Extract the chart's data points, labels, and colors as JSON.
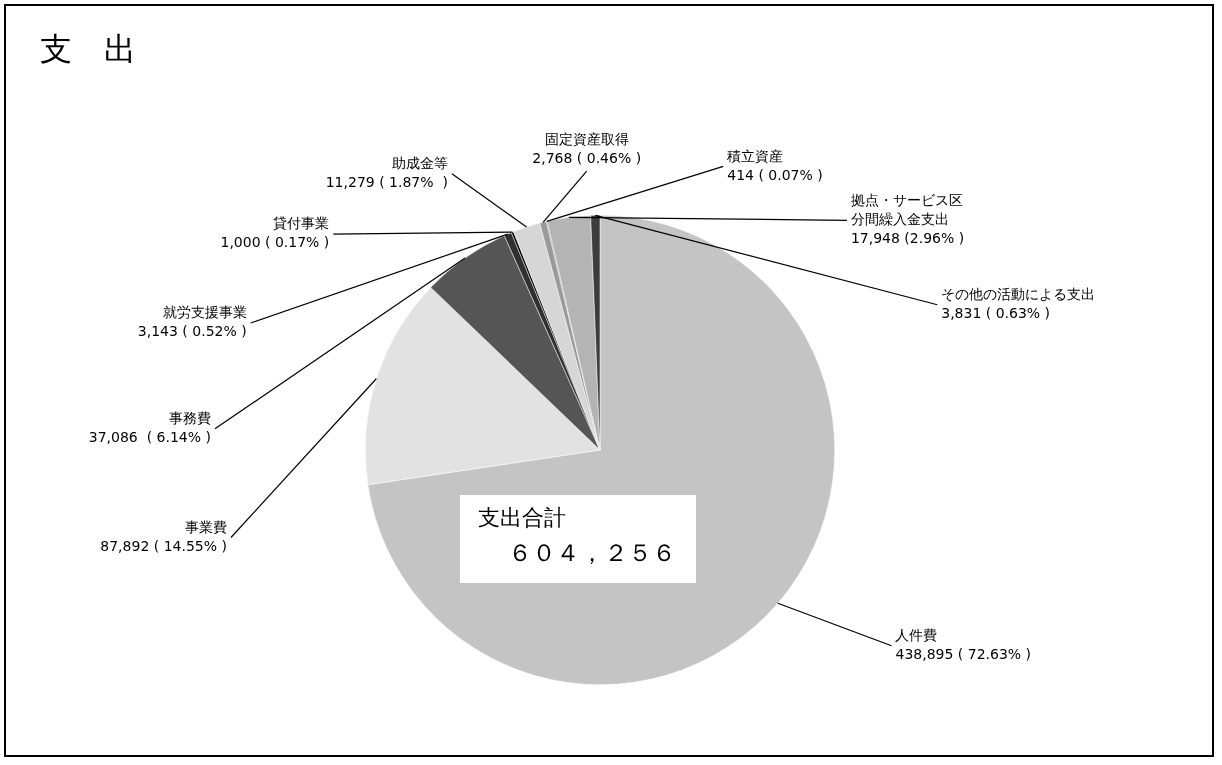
{
  "chart_data": {
    "type": "pie",
    "title": "支　出",
    "categories": [
      "人件費",
      "事業費",
      "事務費",
      "就労支援事業",
      "貸付事業",
      "助成金等",
      "固定資産取得",
      "積立資産",
      "拠点・サービス区分間繰入金支出",
      "その他の活動による支出"
    ],
    "values": [
      438895,
      87892,
      37086,
      3143,
      1000,
      11279,
      2768,
      414,
      17948,
      3831
    ],
    "value_labels": [
      "438,895 ( 72.63% )",
      "87,892 ( 14.55% )",
      "37,086  ( 6.14% )",
      "3,143 ( 0.52% )",
      "1,000 ( 0.17% )",
      "11,279 ( 1.87%  )",
      "2,768 ( 0.46% )",
      "414 ( 0.07% )",
      "17,948 (2.96% )",
      "3,831 ( 0.63% )"
    ],
    "colors": [
      "#c4c4c4",
      "#e2e2e2",
      "#555555",
      "#303030",
      "#000000",
      "#d6d6d6",
      "#9a9a9a",
      "#6e6e6e",
      "#b4b4b4",
      "#3c3c3c"
    ],
    "annotations": [
      "支出合計",
      "６０４，２５６"
    ],
    "legend": false
  }
}
